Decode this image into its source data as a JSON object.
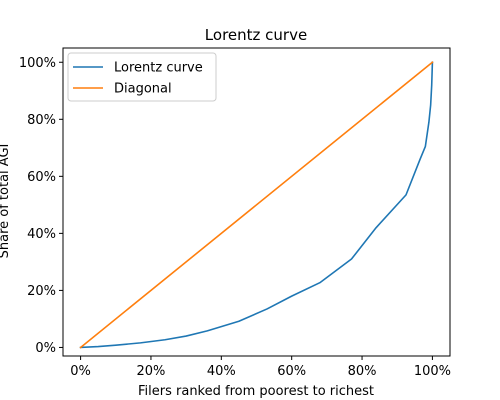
{
  "chart_data": {
    "type": "line",
    "title": "Lorentz curve",
    "xlabel": "Filers ranked from poorest to richest",
    "ylabel": "Share of total AGI",
    "xlim": [
      -0.05,
      1.05
    ],
    "ylim": [
      -0.03,
      1.05
    ],
    "x_ticks": [
      0,
      0.2,
      0.4,
      0.6,
      0.8,
      1.0
    ],
    "x_tick_labels": [
      "0%",
      "20%",
      "40%",
      "60%",
      "80%",
      "100%"
    ],
    "y_ticks": [
      0,
      0.2,
      0.4,
      0.6,
      0.8,
      1.0
    ],
    "y_tick_labels": [
      "0%",
      "20%",
      "40%",
      "60%",
      "80%",
      "100%"
    ],
    "grid": false,
    "legend_position": "top-left",
    "series": [
      {
        "name": "Lorentz curve",
        "color": "#1f77b4",
        "x": [
          0,
          0.05,
          0.1,
          0.17,
          0.24,
          0.3,
          0.36,
          0.45,
          0.53,
          0.6,
          0.68,
          0.77,
          0.84,
          0.925,
          0.965,
          0.98,
          0.99,
          0.995,
          0.998,
          1.0
        ],
        "y": [
          0,
          0.003,
          0.008,
          0.016,
          0.027,
          0.04,
          0.058,
          0.092,
          0.135,
          0.18,
          0.227,
          0.31,
          0.42,
          0.535,
          0.66,
          0.705,
          0.79,
          0.85,
          0.92,
          1.0
        ]
      },
      {
        "name": "Diagonal",
        "color": "#ff7f0e",
        "x": [
          0,
          1
        ],
        "y": [
          0,
          1
        ]
      }
    ]
  }
}
